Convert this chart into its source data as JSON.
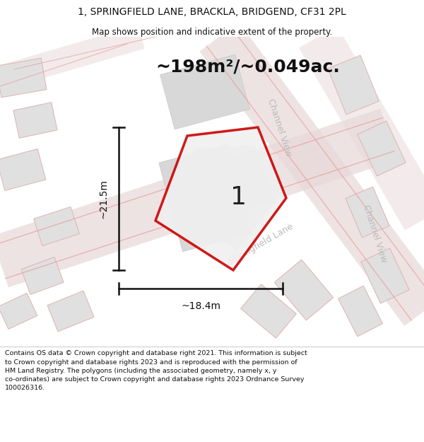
{
  "title_line1": "1, SPRINGFIELD LANE, BRACKLA, BRIDGEND, CF31 2PL",
  "title_line2": "Map shows position and indicative extent of the property.",
  "area_label": "~198m²/~0.049ac.",
  "dim_h": "~21.5m",
  "dim_w": "~18.4m",
  "plot_number": "1",
  "footer": "Contains OS data © Crown copyright and database right 2021. This information is subject to Crown copyright and database rights 2023 and is reproduced with the permission of HM Land Registry. The polygons (including the associated geometry, namely x, y co-ordinates) are subject to Crown copyright and database rights 2023 Ordnance Survey 100026316.",
  "bg_color": "#ffffff",
  "map_bg": "#f8f8f8",
  "plot_border": "#cc0000",
  "street_label_color": "#bbbbbb",
  "dim_color": "#111111",
  "title_color": "#111111",
  "footer_color": "#111111",
  "road_band_color": "#e8d8d8",
  "building_fill": "#e0e0e0",
  "building_edge": "#e8c8c8",
  "inner_fill": "#d8d8d8",
  "plot_fill": "#f0f0f0",
  "road_line_color": "#e8a0a0"
}
